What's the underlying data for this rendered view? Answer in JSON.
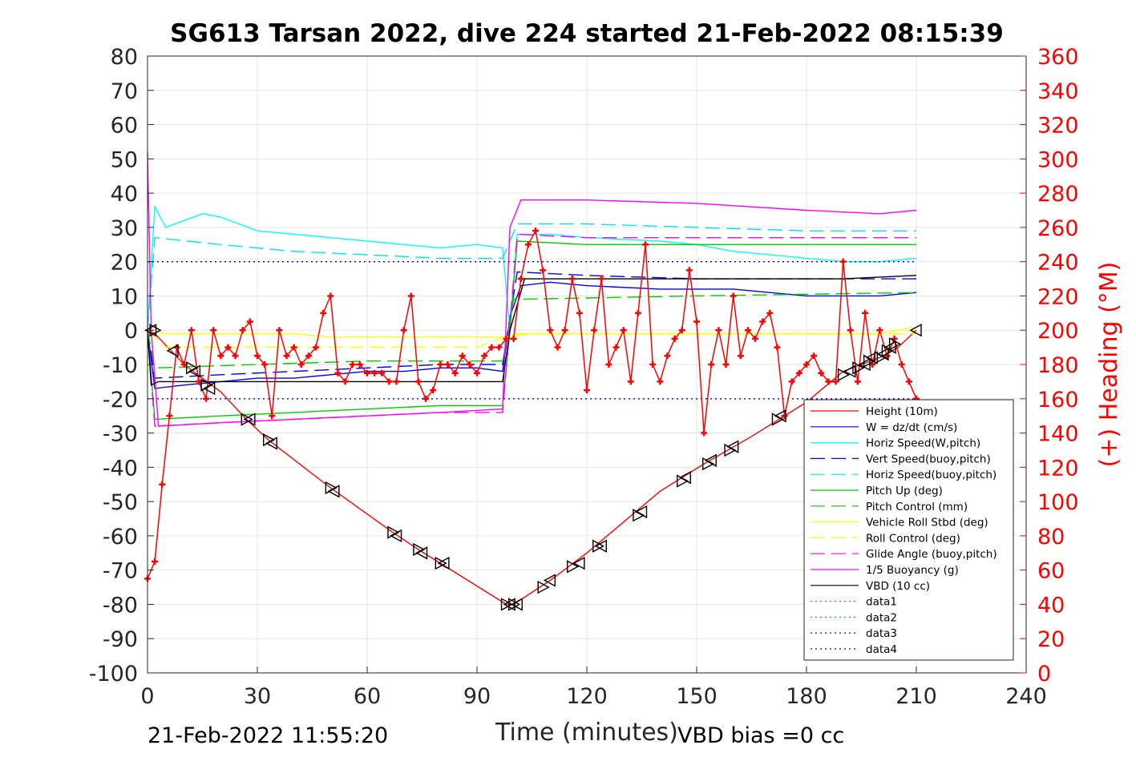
{
  "chart_data": {
    "type": "line",
    "title": "SG613 Tarsan 2022, dive 224 started 21-Feb-2022 08:15:39",
    "xlabel": "Time (minutes)",
    "ylabel": "",
    "y2label": "(+) Heading (°M)",
    "xlim": [
      0,
      240
    ],
    "ylim": [
      -100,
      80
    ],
    "y2lim": [
      0,
      360
    ],
    "x_ticks": [
      "0",
      "30",
      "60",
      "90",
      "120",
      "150",
      "180",
      "210",
      "240"
    ],
    "y_ticks": [
      "80",
      "70",
      "60",
      "50",
      "40",
      "30",
      "20",
      "10",
      "0",
      "-10",
      "-20",
      "-30",
      "-40",
      "-50",
      "-60",
      "-70",
      "-80",
      "-90",
      "-100"
    ],
    "y2_ticks": [
      "360",
      "340",
      "320",
      "300",
      "280",
      "260",
      "240",
      "220",
      "200",
      "180",
      "160",
      "140",
      "120",
      "100",
      "80",
      "60",
      "40",
      "20",
      "0"
    ],
    "grid": true,
    "legend_position": "bottom-right",
    "footer_left": "21-Feb-2022 11:55:20",
    "footer_right": "VBD bias =0 cc",
    "series": [
      {
        "name": "Height (10m)",
        "color": "#ff0000",
        "style": "solid",
        "x": [
          0,
          2,
          10,
          20,
          27,
          33,
          50,
          67,
          74,
          80,
          98,
          100,
          110,
          120,
          130,
          140,
          152,
          165,
          180,
          190,
          200,
          205,
          210
        ],
        "y": [
          0,
          -1,
          -10,
          -18,
          -26,
          -32,
          -46,
          -59,
          -64,
          -68,
          -80,
          -80,
          -73,
          -65,
          -56,
          -47,
          -39,
          -31,
          -21,
          -12,
          -8,
          -5,
          0
        ]
      },
      {
        "name": "W = dz/dt (cm/s)",
        "color": "#0000ff",
        "style": "solid",
        "x": [
          0,
          2,
          10,
          20,
          30,
          40,
          50,
          60,
          70,
          80,
          90,
          97,
          99,
          102,
          110,
          120,
          140,
          160,
          180,
          200,
          210
        ],
        "y": [
          0,
          -17,
          -16,
          -15,
          -14,
          -14,
          -13,
          -12,
          -12,
          -11,
          -11,
          -12,
          4,
          13,
          14,
          13,
          12,
          12,
          10,
          10,
          11
        ]
      },
      {
        "name": "Horiz Speed(W,pitch)",
        "color": "#00ffff",
        "style": "solid",
        "x": [
          0,
          2,
          5,
          10,
          15,
          20,
          25,
          30,
          40,
          50,
          60,
          70,
          80,
          90,
          97,
          99,
          101,
          110,
          120,
          140,
          150,
          160,
          170,
          180,
          190,
          200,
          210
        ],
        "y": [
          0,
          36,
          30,
          32,
          34,
          33,
          31,
          29,
          28,
          27,
          26,
          25,
          24,
          25,
          24,
          0,
          28,
          28,
          27,
          26,
          25,
          23,
          22,
          21,
          20,
          20,
          21
        ]
      },
      {
        "name": "Vert Speed(buoy,pitch)",
        "color": "#0000ff",
        "style": "dash",
        "x": [
          0,
          2,
          20,
          40,
          60,
          80,
          97,
          101,
          120,
          150,
          180,
          210
        ],
        "y": [
          0,
          -14,
          -13,
          -12,
          -11,
          -10,
          -10,
          17,
          16,
          15,
          15,
          15
        ]
      },
      {
        "name": "Horiz Speed(buoy,pitch)",
        "color": "#00e5e5",
        "style": "dash",
        "x": [
          0,
          2,
          20,
          40,
          60,
          80,
          97,
          101,
          120,
          150,
          180,
          210
        ],
        "y": [
          0,
          27,
          25,
          23,
          22,
          21,
          21,
          31,
          31,
          30,
          29,
          29
        ]
      },
      {
        "name": "Pitch Up (deg)",
        "color": "#00cc00",
        "style": "solid",
        "x": [
          0,
          2,
          20,
          40,
          60,
          80,
          97,
          99,
          101,
          120,
          150,
          180,
          210
        ],
        "y": [
          0,
          -26,
          -25,
          -24,
          -23,
          -22,
          -22,
          0,
          26,
          25,
          25,
          25,
          25
        ]
      },
      {
        "name": "Pitch Control (mm)",
        "color": "#00cc00",
        "style": "dash",
        "x": [
          0,
          2,
          30,
          60,
          97,
          100,
          150,
          210
        ],
        "y": [
          0,
          -11,
          -10,
          -9,
          -9,
          9,
          10,
          11
        ]
      },
      {
        "name": "Vehicle Roll Stbd (deg)",
        "color": "#ffff00",
        "style": "solid",
        "x": [
          0,
          5,
          20,
          30,
          40,
          50,
          60,
          70,
          80,
          90,
          97,
          105,
          120,
          140,
          160,
          180,
          200,
          210
        ],
        "y": [
          0,
          -1,
          -1,
          -1,
          -1,
          -2,
          -2,
          -2,
          -2,
          -2,
          -2,
          -1,
          -1,
          -1,
          -1,
          -1,
          -1,
          1
        ]
      },
      {
        "name": "Roll Control (deg)",
        "color": "#ffff00",
        "style": "dash",
        "x": [
          0,
          5,
          30,
          60,
          90,
          100,
          130,
          160,
          190,
          210
        ],
        "y": [
          0,
          -5,
          -5,
          -5,
          -5,
          -1,
          -1,
          -1,
          -1,
          -1
        ]
      },
      {
        "name": "Glide Angle (buoy,pitch)",
        "color": "#ff00ff",
        "style": "dash",
        "x": [
          0,
          2,
          20,
          40,
          60,
          80,
          97,
          101,
          120,
          150,
          180,
          210
        ],
        "y": [
          0,
          -28,
          -27,
          -26,
          -25,
          -24,
          -24,
          28,
          27,
          27,
          27,
          27
        ]
      },
      {
        "name": "1/5 Buoyancy (g)",
        "color": "#ff00ff",
        "style": "solid",
        "x": [
          0,
          1,
          3,
          20,
          40,
          60,
          80,
          97,
          99,
          102,
          120,
          150,
          180,
          200,
          210
        ],
        "y": [
          52,
          0,
          -28,
          -27,
          -26,
          -25,
          -24,
          -23,
          30,
          38,
          38,
          37,
          35,
          34,
          35
        ]
      },
      {
        "name": "VBD (10 cc)",
        "color": "#000000",
        "style": "solid",
        "x": [
          0,
          1,
          3,
          20,
          40,
          60,
          80,
          97,
          99,
          103,
          150,
          190,
          210
        ],
        "y": [
          0,
          -16,
          -15,
          -15,
          -15,
          -15,
          -15,
          -15,
          0,
          15,
          15,
          15,
          16
        ]
      },
      {
        "name": "data1",
        "color": "#00cc00",
        "style": "dot",
        "x": [],
        "y": []
      },
      {
        "name": "data2",
        "color": "#00cc00",
        "style": "dot",
        "x": [],
        "y": []
      },
      {
        "name": "data3",
        "color": "#0000aa",
        "style": "dot",
        "x": [
          0,
          210
        ],
        "y": [
          20,
          20
        ]
      },
      {
        "name": "data4",
        "color": "#0000ff",
        "style": "dot",
        "x": [
          0,
          210
        ],
        "y": [
          -20,
          -20
        ]
      }
    ],
    "heading": {
      "name": "(+) Heading (°M)",
      "color": "#ff0000",
      "axis": "right",
      "x": [
        0,
        2,
        4,
        6,
        8,
        10,
        12,
        14,
        16,
        18,
        20,
        22,
        24,
        26,
        28,
        30,
        32,
        34,
        36,
        38,
        40,
        42,
        44,
        46,
        48,
        50,
        52,
        54,
        56,
        58,
        60,
        62,
        64,
        66,
        68,
        70,
        72,
        74,
        76,
        78,
        80,
        82,
        84,
        86,
        88,
        90,
        92,
        94,
        96,
        98,
        100,
        102,
        104,
        106,
        108,
        110,
        112,
        114,
        116,
        118,
        120,
        122,
        124,
        126,
        128,
        130,
        132,
        134,
        136,
        138,
        140,
        142,
        144,
        146,
        148,
        150,
        152,
        154,
        156,
        158,
        160,
        162,
        164,
        166,
        168,
        170,
        172,
        174,
        176,
        178,
        180,
        182,
        184,
        186,
        188,
        190,
        192,
        194,
        196,
        198,
        200,
        202,
        204,
        206,
        208,
        210
      ],
      "y": [
        55,
        65,
        110,
        150,
        190,
        180,
        200,
        170,
        160,
        200,
        185,
        190,
        185,
        200,
        205,
        185,
        180,
        150,
        200,
        185,
        190,
        180,
        185,
        190,
        210,
        220,
        175,
        170,
        180,
        180,
        175,
        175,
        175,
        170,
        170,
        200,
        220,
        170,
        160,
        165,
        180,
        180,
        175,
        185,
        180,
        175,
        185,
        190,
        190,
        195,
        195,
        230,
        250,
        258,
        235,
        200,
        190,
        200,
        230,
        210,
        165,
        200,
        230,
        180,
        190,
        200,
        170,
        210,
        250,
        180,
        170,
        185,
        195,
        200,
        235,
        205,
        140,
        180,
        200,
        180,
        220,
        185,
        200,
        195,
        205,
        210,
        190,
        150,
        170,
        175,
        180,
        185,
        175,
        170,
        170,
        240,
        200,
        170,
        210,
        180,
        200,
        185,
        195,
        180,
        170,
        160
      ]
    },
    "markers": {
      "shape": "triangle",
      "color": "#000000",
      "x": [
        1,
        2,
        7,
        12,
        13,
        16,
        17,
        27,
        28,
        33,
        34,
        50,
        51,
        67,
        68,
        74,
        75,
        80,
        81,
        98,
        99,
        100,
        101,
        108,
        110,
        116,
        118,
        123,
        124,
        134,
        135,
        146,
        147,
        153,
        154,
        159,
        160,
        172,
        173,
        190,
        192,
        194,
        196,
        197,
        198,
        200,
        201,
        202,
        203,
        204,
        210
      ],
      "y": [
        0,
        0,
        -6,
        -11,
        -12,
        -16,
        -17,
        -26,
        -26,
        -32,
        -33,
        -46,
        -47,
        -59,
        -60,
        -64,
        -65,
        -68,
        -68,
        -80,
        -80,
        -80,
        -80,
        -75,
        -73,
        -69,
        -68,
        -63,
        -63,
        -54,
        -53,
        -44,
        -43,
        -39,
        -38,
        -35,
        -34,
        -26,
        -25,
        -13,
        -12,
        -11,
        -10,
        -9,
        -8,
        -8,
        -7,
        -6,
        -5,
        -4,
        0
      ]
    }
  }
}
